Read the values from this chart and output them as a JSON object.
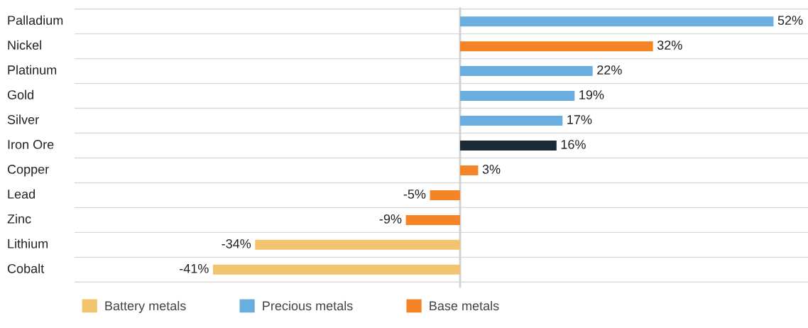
{
  "chart_data": {
    "type": "bar",
    "orientation": "horizontal",
    "categories": [
      "Palladium",
      "Nickel",
      "Platinum",
      "Gold",
      "Silver",
      "Iron Ore",
      "Copper",
      "Lead",
      "Zinc",
      "Lithium",
      "Cobalt"
    ],
    "series": [
      {
        "name": "Battery metals",
        "color": "#f2c46f",
        "values": [
          null,
          null,
          null,
          null,
          null,
          null,
          null,
          null,
          null,
          -34,
          -41
        ],
        "value_labels": [
          null,
          null,
          null,
          null,
          null,
          null,
          null,
          null,
          null,
          "-34%",
          "-41%"
        ]
      },
      {
        "name": "Precious metals",
        "color": "#6aaee0",
        "values": [
          52,
          null,
          22,
          19,
          17,
          null,
          null,
          null,
          null,
          null,
          null
        ],
        "value_labels": [
          "52%",
          null,
          "22%",
          "19%",
          "17%",
          null,
          null,
          null,
          null,
          null,
          null
        ]
      },
      {
        "name": "Base metals",
        "color": "#f58426",
        "values": [
          null,
          32,
          null,
          null,
          null,
          null,
          3,
          -5,
          -9,
          null,
          null
        ],
        "value_labels": [
          null,
          "32%",
          null,
          null,
          null,
          null,
          "3%",
          "-5%",
          "-9%",
          null,
          null
        ]
      },
      {
        "color": "#1b2a35",
        "values": [
          null,
          null,
          null,
          null,
          null,
          16,
          null,
          null,
          null,
          null,
          null
        ],
        "value_labels": [
          null,
          null,
          null,
          null,
          null,
          "16%",
          null,
          null,
          null,
          null,
          null
        ]
      }
    ],
    "grid": "y",
    "legend": "bottom"
  }
}
